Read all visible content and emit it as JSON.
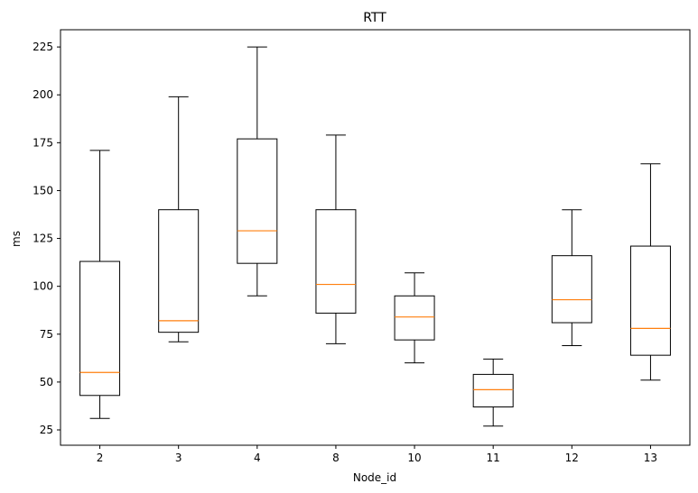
{
  "chart_data": {
    "type": "box",
    "title": "RTT",
    "xlabel": "Node_id",
    "ylabel": "ms",
    "ylim": [
      17,
      234
    ],
    "yticks": [
      25,
      50,
      75,
      100,
      125,
      150,
      175,
      200,
      225
    ],
    "grid": false,
    "colors": {
      "box": "#000000",
      "median": "#ff7f0e"
    },
    "categories": [
      "2",
      "3",
      "4",
      "8",
      "10",
      "11",
      "12",
      "13"
    ],
    "boxes": [
      {
        "category": "2",
        "whisker_low": 31,
        "q1": 43,
        "median": 55,
        "q3": 113,
        "whisker_high": 171
      },
      {
        "category": "3",
        "whisker_low": 71,
        "q1": 76,
        "median": 82,
        "q3": 140,
        "whisker_high": 199
      },
      {
        "category": "4",
        "whisker_low": 95,
        "q1": 112,
        "median": 129,
        "q3": 177,
        "whisker_high": 225
      },
      {
        "category": "8",
        "whisker_low": 70,
        "q1": 86,
        "median": 101,
        "q3": 140,
        "whisker_high": 179
      },
      {
        "category": "10",
        "whisker_low": 60,
        "q1": 72,
        "median": 84,
        "q3": 95,
        "whisker_high": 107
      },
      {
        "category": "11",
        "whisker_low": 27,
        "q1": 37,
        "median": 46,
        "q3": 54,
        "whisker_high": 62
      },
      {
        "category": "12",
        "whisker_low": 69,
        "q1": 81,
        "median": 93,
        "q3": 116,
        "whisker_high": 140
      },
      {
        "category": "13",
        "whisker_low": 51,
        "q1": 64,
        "median": 78,
        "q3": 121,
        "whisker_high": 164
      }
    ]
  }
}
